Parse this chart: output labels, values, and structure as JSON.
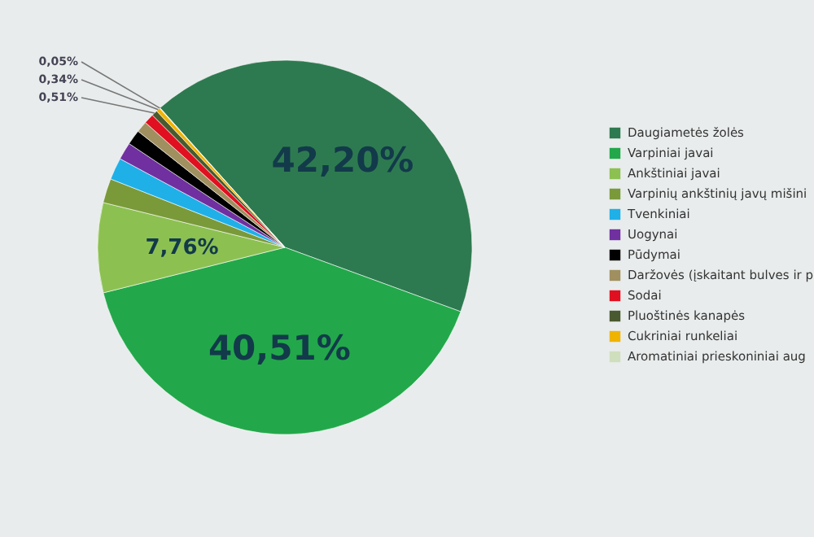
{
  "chart_data": {
    "type": "pie",
    "categories": [
      "Daugiametės žolės",
      "Varpiniai javai",
      "Ankštiniai javai",
      "Varpinių ankštinių javų mišini",
      "Tvenkiniai",
      "Uogynai",
      "Pūdymai",
      "Daržovės (įskaitant bulves ir p",
      "Sodai",
      "Pluoštinės kanapės",
      "Cukriniai runkeliai",
      "Aromatiniai prieskoniniai aug"
    ],
    "values": [
      42.2,
      40.51,
      7.76,
      2.1,
      1.9,
      1.5,
      1.3,
      0.97,
      0.86,
      0.51,
      0.34,
      0.05
    ],
    "value_labels": [
      "42,20%",
      "40,51%",
      "7,76%",
      null,
      null,
      null,
      null,
      null,
      null,
      "0,51%",
      "0,34%",
      "0,05%"
    ],
    "colors": [
      "#2e7a50",
      "#22a84a",
      "#8cc152",
      "#7a9a3a",
      "#1fb0e8",
      "#7030a0",
      "#000000",
      "#a09060",
      "#e01020",
      "#4a5a30",
      "#f0b400",
      "#cfdfbd"
    ],
    "legend": "right"
  }
}
